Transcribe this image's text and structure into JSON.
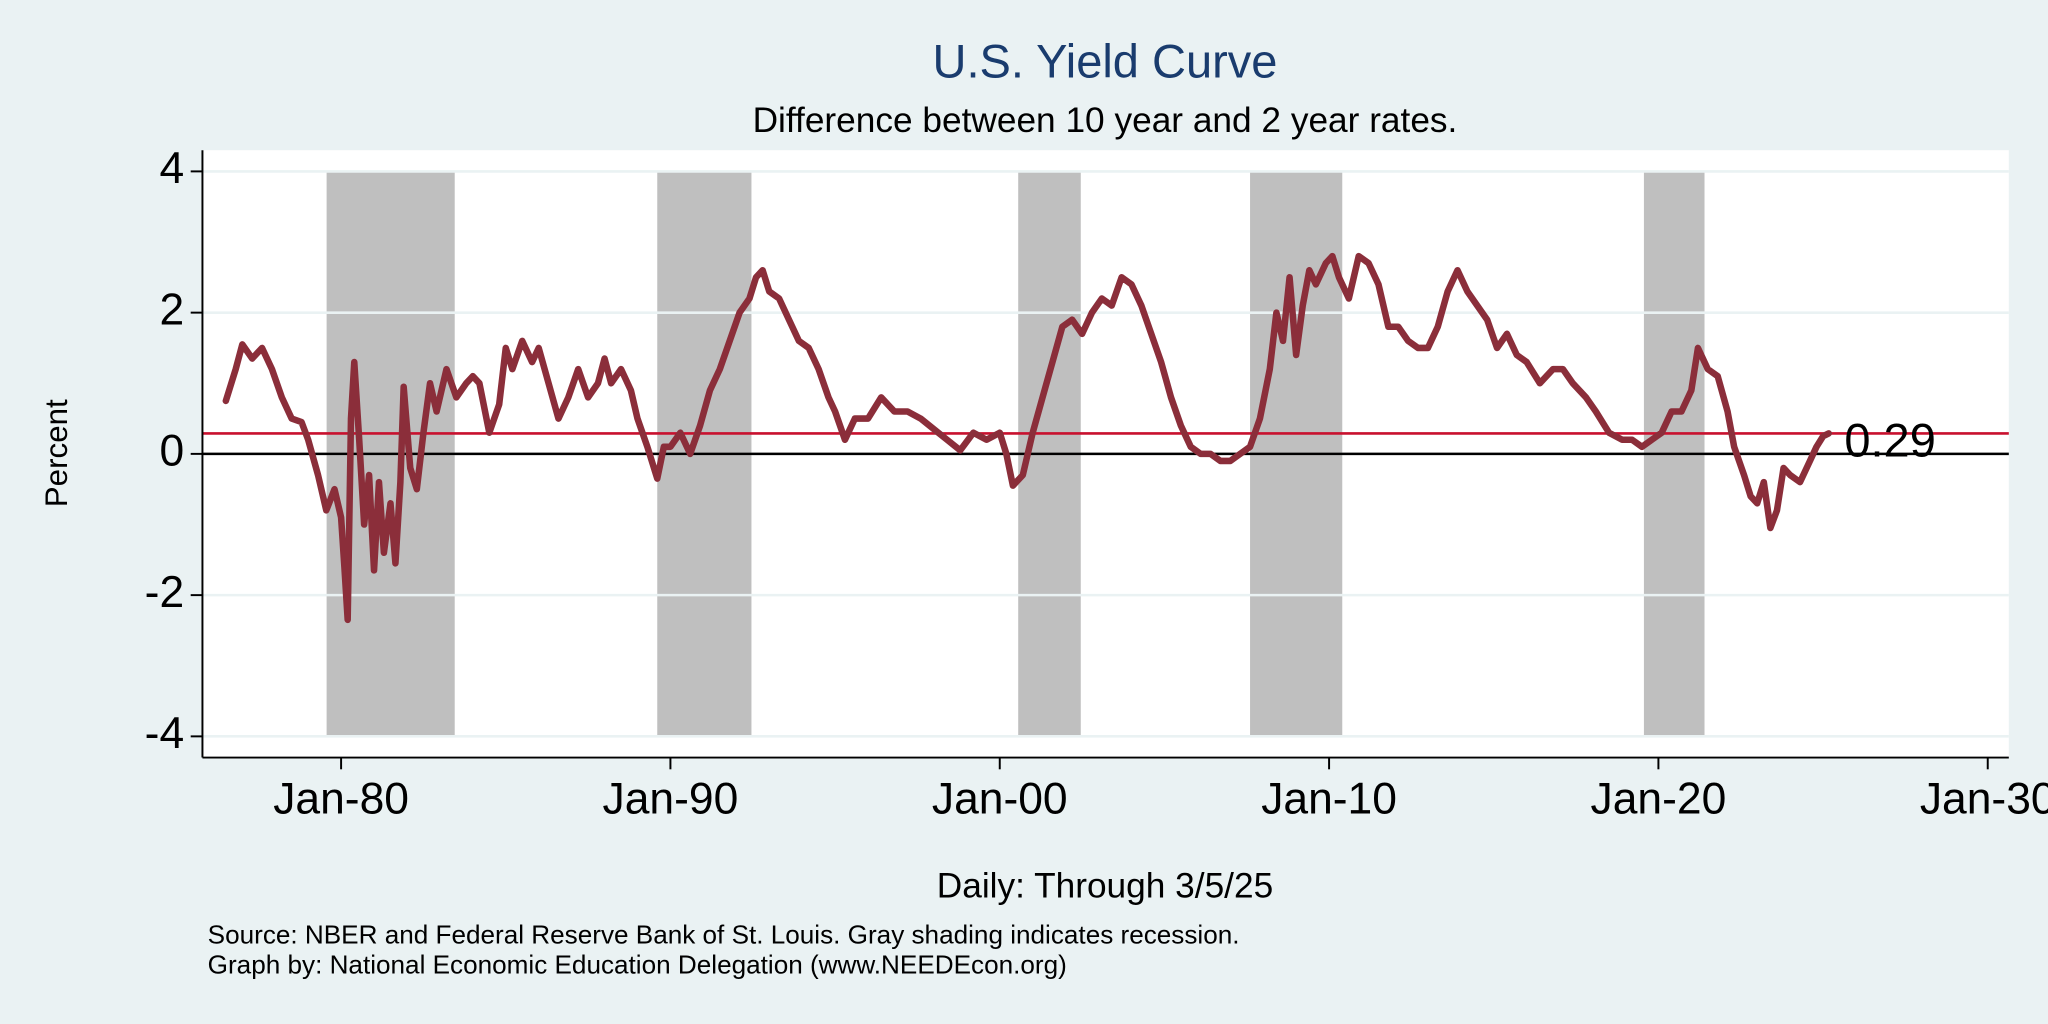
{
  "chart_data": {
    "type": "line",
    "title": "U.S. Yield Curve",
    "subtitle": "Difference between 10 year and 2 year rates.",
    "ylabel": "Percent",
    "xlabel": "Daily: Through 3/5/25",
    "notes": [
      "Source: NBER and Federal Reserve Bank of St. Louis. Gray shading indicates recession.",
      "Graph by: National Economic Education Delegation (www.NEEDEcon.org)"
    ],
    "xlim": [
      1975.79,
      2030.64
    ],
    "xticks": [
      {
        "value": 1980,
        "label": "Jan-80"
      },
      {
        "value": 1990,
        "label": "Jan-90"
      },
      {
        "value": 2000,
        "label": "Jan-00"
      },
      {
        "value": 2010,
        "label": "Jan-10"
      },
      {
        "value": 2020,
        "label": "Jan-20"
      },
      {
        "value": 2030,
        "label": "Jan-30"
      }
    ],
    "ylim": [
      -4.3,
      4.3
    ],
    "yticks": [
      -4,
      -2,
      0,
      2,
      4
    ],
    "grid": true,
    "recessions": [
      [
        1979.56,
        1983.45
      ],
      [
        1989.6,
        1992.46
      ],
      [
        2000.56,
        2002.46
      ],
      [
        2007.6,
        2010.4
      ],
      [
        2019.56,
        2021.4
      ]
    ],
    "recession_color": "#bfbfbf",
    "reference_value": 0.29,
    "reference_color": "#c8102e",
    "series": [
      {
        "color": "#8b2e3a",
        "x": [
          1976.5,
          1976.8,
          1977.0,
          1977.3,
          1977.6,
          1977.9,
          1978.2,
          1978.5,
          1978.8,
          1979.0,
          1979.3,
          1979.55,
          1979.8,
          1980.0,
          1980.1,
          1980.2,
          1980.3,
          1980.4,
          1980.55,
          1980.7,
          1980.85,
          1981.0,
          1981.15,
          1981.3,
          1981.5,
          1981.65,
          1981.8,
          1981.9,
          1982.1,
          1982.3,
          1982.5,
          1982.7,
          1982.9,
          1983.2,
          1983.5,
          1983.8,
          1984.0,
          1984.2,
          1984.5,
          1984.8,
          1985.0,
          1985.2,
          1985.5,
          1985.8,
          1986.0,
          1986.3,
          1986.6,
          1986.9,
          1987.2,
          1987.5,
          1987.8,
          1988.0,
          1988.2,
          1988.5,
          1988.8,
          1989.0,
          1989.3,
          1989.6,
          1989.8,
          1990.0,
          1990.3,
          1990.6,
          1990.9,
          1991.2,
          1991.5,
          1991.8,
          1992.1,
          1992.4,
          1992.6,
          1992.8,
          1993.0,
          1993.3,
          1993.6,
          1993.9,
          1994.2,
          1994.5,
          1994.8,
          1995.0,
          1995.3,
          1995.6,
          1996.0,
          1996.4,
          1996.8,
          1997.2,
          1997.6,
          1998.0,
          1998.4,
          1998.8,
          1999.2,
          1999.6,
          2000.0,
          2000.2,
          2000.4,
          2000.7,
          2001.0,
          2001.3,
          2001.6,
          2001.9,
          2002.2,
          2002.5,
          2002.8,
          2003.1,
          2003.4,
          2003.7,
          2004.0,
          2004.3,
          2004.6,
          2004.9,
          2005.2,
          2005.5,
          2005.8,
          2006.1,
          2006.4,
          2006.7,
          2007.0,
          2007.3,
          2007.6,
          2007.9,
          2008.2,
          2008.4,
          2008.6,
          2008.8,
          2009.0,
          2009.2,
          2009.4,
          2009.6,
          2009.9,
          2010.1,
          2010.3,
          2010.6,
          2010.9,
          2011.2,
          2011.5,
          2011.8,
          2012.1,
          2012.4,
          2012.7,
          2013.0,
          2013.3,
          2013.6,
          2013.9,
          2014.2,
          2014.5,
          2014.8,
          2015.1,
          2015.4,
          2015.7,
          2016.0,
          2016.4,
          2016.8,
          2017.1,
          2017.4,
          2017.8,
          2018.1,
          2018.5,
          2018.9,
          2019.2,
          2019.5,
          2019.8,
          2020.1,
          2020.4,
          2020.7,
          2021.0,
          2021.2,
          2021.5,
          2021.8,
          2022.1,
          2022.3,
          2022.6,
          2022.8,
          2023.0,
          2023.2,
          2023.4,
          2023.6,
          2023.8,
          2024.0,
          2024.3,
          2024.6,
          2024.8,
          2025.0,
          2025.17
        ],
        "values": [
          0.75,
          1.2,
          1.55,
          1.35,
          1.5,
          1.2,
          0.8,
          0.5,
          0.45,
          0.2,
          -0.3,
          -0.8,
          -0.5,
          -0.9,
          -1.6,
          -2.35,
          0.5,
          1.3,
          0.2,
          -1.0,
          -0.3,
          -1.65,
          -0.4,
          -1.4,
          -0.7,
          -1.55,
          -0.4,
          0.95,
          -0.2,
          -0.5,
          0.3,
          1.0,
          0.6,
          1.2,
          0.8,
          1.0,
          1.1,
          1.0,
          0.3,
          0.7,
          1.5,
          1.2,
          1.6,
          1.3,
          1.5,
          1.0,
          0.5,
          0.8,
          1.2,
          0.8,
          1.0,
          1.35,
          1.0,
          1.2,
          0.9,
          0.5,
          0.1,
          -0.35,
          0.1,
          0.1,
          0.3,
          0.0,
          0.4,
          0.9,
          1.2,
          1.6,
          2.0,
          2.2,
          2.5,
          2.6,
          2.3,
          2.2,
          1.9,
          1.6,
          1.5,
          1.2,
          0.8,
          0.6,
          0.2,
          0.5,
          0.5,
          0.8,
          0.6,
          0.6,
          0.5,
          0.35,
          0.2,
          0.05,
          0.3,
          0.2,
          0.3,
          0.0,
          -0.45,
          -0.3,
          0.3,
          0.8,
          1.3,
          1.8,
          1.9,
          1.7,
          2.0,
          2.2,
          2.1,
          2.5,
          2.4,
          2.1,
          1.7,
          1.3,
          0.8,
          0.4,
          0.1,
          0.0,
          0.0,
          -0.1,
          -0.1,
          0.0,
          0.1,
          0.5,
          1.2,
          2.0,
          1.6,
          2.5,
          1.4,
          2.1,
          2.6,
          2.4,
          2.7,
          2.8,
          2.5,
          2.2,
          2.8,
          2.7,
          2.4,
          1.8,
          1.8,
          1.6,
          1.5,
          1.5,
          1.8,
          2.3,
          2.6,
          2.3,
          2.1,
          1.9,
          1.5,
          1.7,
          1.4,
          1.3,
          1.0,
          1.2,
          1.2,
          1.0,
          0.8,
          0.6,
          0.3,
          0.2,
          0.2,
          0.1,
          0.2,
          0.3,
          0.6,
          0.6,
          0.9,
          1.5,
          1.2,
          1.1,
          0.6,
          0.1,
          -0.3,
          -0.6,
          -0.7,
          -0.4,
          -1.05,
          -0.8,
          -0.2,
          -0.3,
          -0.4,
          -0.1,
          0.1,
          0.25,
          0.29
        ]
      }
    ]
  }
}
